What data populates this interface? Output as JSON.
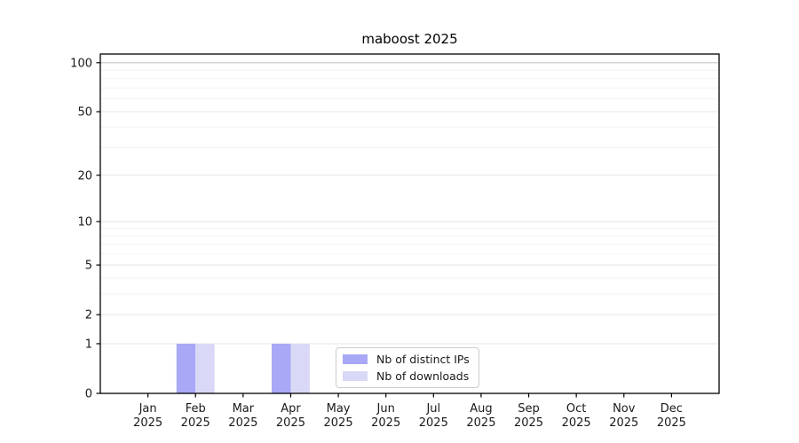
{
  "chart_data": {
    "type": "bar",
    "title": "maboost 2025",
    "xlabel": "",
    "ylabel": "",
    "x_categories": [
      "Jan 2025",
      "Feb 2025",
      "Mar 2025",
      "Apr 2025",
      "May 2025",
      "Jun 2025",
      "Jul 2025",
      "Aug 2025",
      "Sep 2025",
      "Oct 2025",
      "Nov 2025",
      "Dec 2025"
    ],
    "series": [
      {
        "name": "Nb of distinct IPs",
        "color": "#a8a8f6",
        "values": [
          0,
          1,
          0,
          1,
          0,
          0,
          0,
          0,
          0,
          0,
          0,
          0
        ]
      },
      {
        "name": "Nb of downloads",
        "color": "#d9d9f7",
        "values": [
          0,
          1,
          0,
          1,
          0,
          0,
          0,
          0,
          0,
          0,
          0,
          0
        ]
      }
    ],
    "y_axis": {
      "scale": "log1p",
      "lim": [
        0,
        112
      ],
      "major_ticks": [
        0,
        1,
        2,
        5,
        10,
        20,
        50,
        100
      ],
      "major_tick_labels": [
        "0",
        "1",
        "2",
        "5",
        "10",
        "20",
        "50",
        "100"
      ],
      "minor_ticks": [
        3,
        4,
        6,
        7,
        8,
        9,
        30,
        40,
        60,
        70,
        80,
        90
      ]
    },
    "legend": {
      "position": "lower center",
      "border_color": "#cccccc"
    },
    "grid": {
      "on": true,
      "major_color": "#e5e5e5",
      "minor_color": "#f2f2f2",
      "line_100_color": "#c6c6c6"
    },
    "bar_group_width_fraction": 0.8,
    "spine_color": "#000000",
    "tick_text_color": "#1a1a1a"
  }
}
